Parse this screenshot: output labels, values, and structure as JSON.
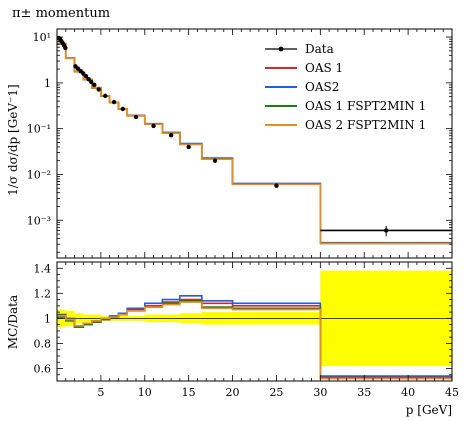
{
  "chart_data": {
    "type": "line",
    "title": "π± momentum",
    "xlabel": "p [GeV]",
    "ylabel": "1/σ dσ/dp [GeV⁻1]",
    "ratio_ylabel": "MC/Data",
    "xlim": [
      0,
      45
    ],
    "ylim": [
      0.00015,
      15
    ],
    "yscale": "log",
    "ratio_ylim": [
      0.5,
      1.45
    ],
    "legend_position": "top-right",
    "x_ticks": [
      5,
      10,
      15,
      20,
      25,
      30,
      35,
      40,
      45
    ],
    "y_ticks": [
      {
        "value": 10,
        "label": "10¹"
      },
      {
        "value": 1,
        "label": "1"
      },
      {
        "value": 0.1,
        "label": "10⁻¹"
      },
      {
        "value": 0.01,
        "label": "10⁻²"
      },
      {
        "value": 0.001,
        "label": "10⁻³"
      }
    ],
    "ratio_y_ticks": [
      0.6,
      0.8,
      1.0,
      1.2,
      1.4
    ],
    "data": {
      "name": "Data",
      "color": "#000000",
      "points": [
        {
          "x": 0.2,
          "y": 9.5
        },
        {
          "x": 0.35,
          "y": 9.0
        },
        {
          "x": 0.5,
          "y": 8.2
        },
        {
          "x": 0.65,
          "y": 7.4
        },
        {
          "x": 0.8,
          "y": 6.6
        },
        {
          "x": 0.95,
          "y": 5.8
        },
        {
          "x": 2.1,
          "y": 2.3
        },
        {
          "x": 2.4,
          "y": 2.05
        },
        {
          "x": 2.7,
          "y": 1.8
        },
        {
          "x": 3.0,
          "y": 1.6
        },
        {
          "x": 3.3,
          "y": 1.4
        },
        {
          "x": 3.6,
          "y": 1.2
        },
        {
          "x": 3.9,
          "y": 1.05
        },
        {
          "x": 4.25,
          "y": 0.9
        },
        {
          "x": 4.75,
          "y": 0.72
        },
        {
          "x": 5.5,
          "y": 0.52
        },
        {
          "x": 6.5,
          "y": 0.38
        },
        {
          "x": 7.5,
          "y": 0.27
        },
        {
          "x": 9.0,
          "y": 0.18
        },
        {
          "x": 11.0,
          "y": 0.115
        },
        {
          "x": 13.0,
          "y": 0.072
        },
        {
          "x": 15.0,
          "y": 0.04
        },
        {
          "x": 18.0,
          "y": 0.02
        },
        {
          "x": 25.0,
          "y": 0.0057
        },
        {
          "x": 37.5,
          "y": 0.0006
        }
      ],
      "bins": [
        [
          0,
          1
        ],
        [
          1,
          2
        ],
        [
          2,
          3
        ],
        [
          3,
          4
        ],
        [
          4,
          5
        ],
        [
          5,
          6
        ],
        [
          6,
          7
        ],
        [
          7,
          8
        ],
        [
          8,
          10
        ],
        [
          10,
          12
        ],
        [
          12,
          14
        ],
        [
          14,
          16.5
        ],
        [
          16.5,
          20
        ],
        [
          20,
          30
        ],
        [
          30,
          45
        ]
      ],
      "values": [
        7.0,
        3.5,
        1.9,
        1.25,
        0.8,
        0.52,
        0.37,
        0.26,
        0.18,
        0.115,
        0.072,
        0.04,
        0.02,
        0.0057,
        0.0006
      ]
    },
    "series": [
      {
        "name": "OAS 1",
        "color": "#d62728",
        "ratio": [
          1.02,
          0.99,
          0.93,
          0.95,
          0.97,
          0.99,
          1.01,
          1.03,
          1.07,
          1.1,
          1.13,
          1.15,
          1.12,
          1.1,
          0.53
        ]
      },
      {
        "name": "OAS2",
        "color": "#1f5fe0",
        "ratio": [
          1.03,
          1.0,
          0.94,
          0.96,
          0.98,
          1.0,
          1.02,
          1.04,
          1.08,
          1.12,
          1.15,
          1.18,
          1.14,
          1.12,
          0.54
        ]
      },
      {
        "name": "OAS 1 FSPT2MIN 1",
        "color": "#1a7f1a",
        "ratio": [
          1.01,
          0.98,
          0.93,
          0.95,
          0.97,
          0.99,
          1.01,
          1.03,
          1.06,
          1.09,
          1.12,
          1.14,
          1.09,
          1.08,
          0.52
        ]
      },
      {
        "name": "OAS 2 FSPT2MIN 1",
        "color": "#f08a1c",
        "ratio": [
          1.02,
          0.99,
          0.94,
          0.96,
          0.98,
          1.0,
          1.01,
          1.03,
          1.06,
          1.09,
          1.11,
          1.13,
          1.08,
          1.07,
          0.52
        ]
      }
    ],
    "data_uncertainty_band": {
      "color": "#ffff00",
      "lo": [
        0.93,
        0.94,
        0.96,
        0.97,
        0.97,
        0.98,
        0.98,
        0.98,
        0.98,
        0.97,
        0.97,
        0.96,
        0.95,
        0.95,
        0.62
      ],
      "hi": [
        1.07,
        1.06,
        1.04,
        1.03,
        1.03,
        1.02,
        1.02,
        1.02,
        1.02,
        1.03,
        1.03,
        1.04,
        1.05,
        1.05,
        1.38
      ]
    }
  }
}
